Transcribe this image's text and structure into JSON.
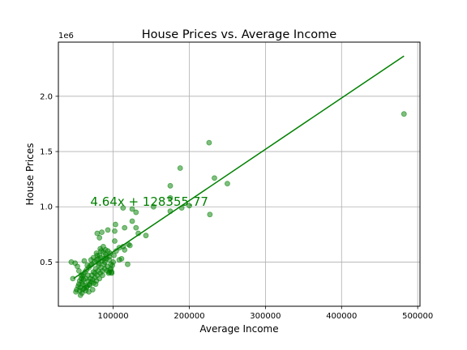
{
  "chart_data": {
    "type": "scatter",
    "title": "House Prices vs. Average Income",
    "xlabel": "Average Income",
    "ylabel": "House Prices",
    "y_offset_label": "1e6",
    "xlim": [
      28000,
      503000
    ],
    "ylim": [
      100000,
      2490000
    ],
    "x_ticks": [
      100000,
      200000,
      300000,
      400000,
      500000
    ],
    "x_tick_labels": [
      "100000",
      "200000",
      "300000",
      "400000",
      "500000"
    ],
    "y_ticks": [
      500000,
      1000000,
      1500000,
      2000000
    ],
    "y_tick_labels": [
      "0.5",
      "1.0",
      "1.5",
      "2.0"
    ],
    "grid": true,
    "colors": {
      "points": "#008000",
      "line": "#008000",
      "grid": "#b0b0b0",
      "annotation": "#008000"
    },
    "regression": {
      "slope": 4.64,
      "intercept": 128355.77,
      "x_range": [
        48000,
        482000
      ],
      "equation_text": "4.64x + 128355.77",
      "equation_pos": [
        70000,
        1010000
      ]
    },
    "points": [
      [
        482000,
        1840000
      ],
      [
        226000,
        1580000
      ],
      [
        188000,
        1350000
      ],
      [
        233000,
        1260000
      ],
      [
        250000,
        1210000
      ],
      [
        175000,
        1190000
      ],
      [
        175000,
        1080000
      ],
      [
        190000,
        990000
      ],
      [
        200000,
        1010000
      ],
      [
        175000,
        960000
      ],
      [
        227000,
        930000
      ],
      [
        153000,
        1000000
      ],
      [
        113000,
        990000
      ],
      [
        125000,
        980000
      ],
      [
        130000,
        950000
      ],
      [
        125000,
        870000
      ],
      [
        103000,
        840000
      ],
      [
        130000,
        810000
      ],
      [
        115000,
        810000
      ],
      [
        102000,
        780000
      ],
      [
        93000,
        790000
      ],
      [
        85000,
        770000
      ],
      [
        79000,
        760000
      ],
      [
        143000,
        740000
      ],
      [
        82000,
        720000
      ],
      [
        102000,
        690000
      ],
      [
        120000,
        660000
      ],
      [
        108000,
        630000
      ],
      [
        115000,
        610000
      ],
      [
        111000,
        530000
      ],
      [
        119000,
        480000
      ],
      [
        100000,
        500000
      ],
      [
        93000,
        600000
      ],
      [
        95000,
        550000
      ],
      [
        90000,
        570000
      ],
      [
        87000,
        590000
      ],
      [
        84000,
        600000
      ],
      [
        82000,
        560000
      ],
      [
        80000,
        530000
      ],
      [
        78000,
        520000
      ],
      [
        75000,
        500000
      ],
      [
        72000,
        480000
      ],
      [
        70000,
        470000
      ],
      [
        68000,
        450000
      ],
      [
        65000,
        430000
      ],
      [
        63000,
        410000
      ],
      [
        61000,
        390000
      ],
      [
        60000,
        370000
      ],
      [
        58000,
        350000
      ],
      [
        56000,
        330000
      ],
      [
        55000,
        300000
      ],
      [
        54000,
        280000
      ],
      [
        52000,
        250000
      ],
      [
        51000,
        230000
      ],
      [
        57000,
        200000
      ],
      [
        62000,
        260000
      ],
      [
        66000,
        280000
      ],
      [
        69000,
        300000
      ],
      [
        71000,
        320000
      ],
      [
        73000,
        340000
      ],
      [
        76000,
        360000
      ],
      [
        79000,
        380000
      ],
      [
        83000,
        400000
      ],
      [
        86000,
        420000
      ],
      [
        89000,
        440000
      ],
      [
        92000,
        460000
      ],
      [
        96000,
        430000
      ],
      [
        98000,
        410000
      ],
      [
        94000,
        400000
      ],
      [
        88000,
        480000
      ],
      [
        85000,
        510000
      ],
      [
        81000,
        490000
      ],
      [
        77000,
        440000
      ],
      [
        74000,
        410000
      ],
      [
        67000,
        380000
      ],
      [
        64000,
        350000
      ],
      [
        59000,
        320000
      ],
      [
        57000,
        270000
      ],
      [
        60000,
        250000
      ],
      [
        63000,
        290000
      ],
      [
        67000,
        330000
      ],
      [
        70000,
        350000
      ],
      [
        72000,
        380000
      ],
      [
        76000,
        400000
      ],
      [
        80000,
        420000
      ],
      [
        84000,
        450000
      ],
      [
        88000,
        530000
      ],
      [
        91000,
        550000
      ],
      [
        95000,
        520000
      ],
      [
        99000,
        470000
      ],
      [
        97000,
        440000
      ],
      [
        92000,
        420000
      ],
      [
        86000,
        380000
      ],
      [
        82000,
        350000
      ],
      [
        78000,
        330000
      ],
      [
        74000,
        310000
      ],
      [
        69000,
        290000
      ],
      [
        65000,
        270000
      ],
      [
        61000,
        340000
      ],
      [
        58000,
        380000
      ],
      [
        55000,
        420000
      ],
      [
        53000,
        460000
      ],
      [
        50000,
        490000
      ],
      [
        47000,
        350000
      ],
      [
        45000,
        500000
      ],
      [
        62000,
        510000
      ],
      [
        66000,
        470000
      ],
      [
        71000,
        520000
      ],
      [
        74000,
        540000
      ],
      [
        78000,
        580000
      ],
      [
        83000,
        620000
      ],
      [
        87000,
        640000
      ],
      [
        90000,
        610000
      ],
      [
        96000,
        580000
      ],
      [
        101000,
        560000
      ],
      [
        104000,
        600000
      ],
      [
        108000,
        520000
      ],
      [
        113000,
        640000
      ],
      [
        122000,
        650000
      ],
      [
        133000,
        760000
      ],
      [
        97000,
        480000
      ],
      [
        89000,
        500000
      ],
      [
        81000,
        470000
      ],
      [
        77000,
        300000
      ],
      [
        73000,
        250000
      ],
      [
        68000,
        230000
      ],
      [
        64000,
        240000
      ],
      [
        59000,
        220000
      ],
      [
        56000,
        240000
      ],
      [
        60000,
        300000
      ],
      [
        79000,
        560000
      ],
      [
        84000,
        540000
      ],
      [
        91000,
        530000
      ],
      [
        95000,
        410000
      ],
      [
        98000,
        400000
      ]
    ]
  }
}
